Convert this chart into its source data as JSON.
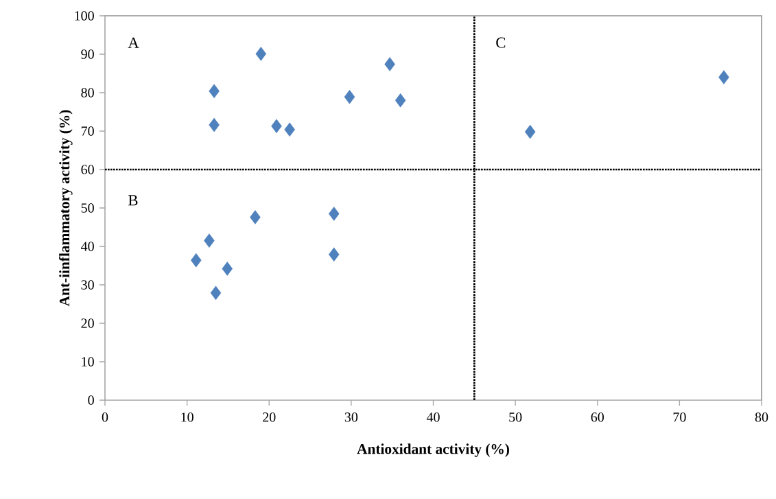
{
  "chart_data": {
    "type": "scatter",
    "xlabel": "Antioxidant activity (%)",
    "ylabel": "Ant-iinflammatory activity (%)",
    "x": [
      19.0,
      13.3,
      13.3,
      20.9,
      22.5,
      29.8,
      34.7,
      36.0,
      18.3,
      27.9,
      12.7,
      11.1,
      14.9,
      27.9,
      13.5,
      51.8,
      75.4
    ],
    "values": [
      90.1,
      80.4,
      71.6,
      71.3,
      70.4,
      78.9,
      87.4,
      78.0,
      47.6,
      48.5,
      41.5,
      36.4,
      34.2,
      37.9,
      27.9,
      69.8,
      84.0
    ],
    "color": "#4f81bd",
    "marker": "diamond",
    "xlim": [
      0,
      80
    ],
    "ylim": [
      0,
      100
    ],
    "xticks": [
      0,
      10,
      20,
      30,
      40,
      50,
      60,
      70,
      80
    ],
    "yticks": [
      0,
      10,
      20,
      30,
      40,
      50,
      60,
      70,
      80,
      90,
      100
    ],
    "ref_lines": [
      {
        "axis": "y",
        "value": 60,
        "color": "#000000",
        "line_style": "dotted"
      },
      {
        "axis": "x",
        "value": 45,
        "color": "#000000",
        "line_style": "dotted"
      }
    ],
    "annotations": [
      "A",
      "B",
      "C"
    ]
  }
}
